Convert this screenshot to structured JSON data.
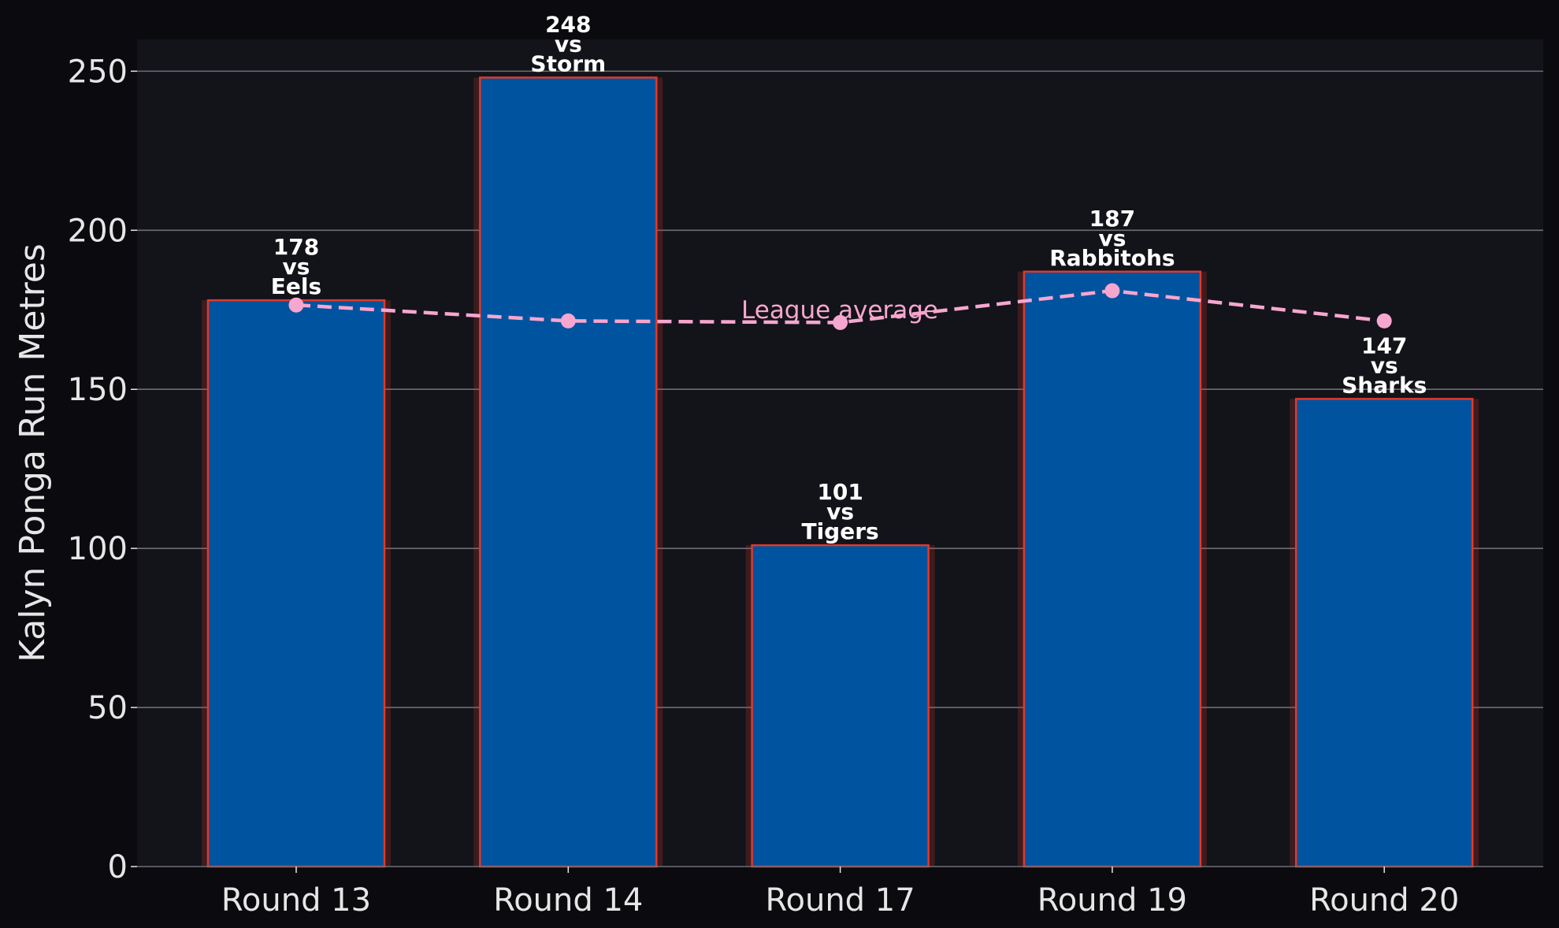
{
  "chart_data": {
    "type": "bar",
    "categories": [
      "Round 13",
      "Round 14",
      "Round 17",
      "Round 19",
      "Round 20"
    ],
    "values": [
      178,
      248,
      101,
      187,
      147
    ],
    "opponents": [
      "Eels",
      "Storm",
      "Tigers",
      "Rabbitohs",
      "Sharks"
    ],
    "vs_text": "vs",
    "series": [
      {
        "name": "",
        "values": [
          178,
          248,
          101,
          187,
          147
        ]
      },
      {
        "name": "League average",
        "values": [
          176.5,
          171.5,
          171,
          181,
          171.5
        ]
      }
    ],
    "line_label": "League average",
    "xlabel": "",
    "ylabel": "Kalyn Ponga Run Metres",
    "ylim": [
      0,
      260
    ],
    "yticks": [
      0,
      50,
      100,
      150,
      200,
      250
    ],
    "grid": "y",
    "legend": "none"
  },
  "colors": {
    "page_background": "#0b0b0f",
    "plot_background": "#13131a",
    "bar_fill": "#00539f",
    "bar_edge": "#e0392b",
    "bar_glow": "#e0392b",
    "average_line": "#f7a6cf",
    "grid": "#6e6e75",
    "tick_text": "#e6e6e6",
    "label_text": "#ffffff"
  }
}
